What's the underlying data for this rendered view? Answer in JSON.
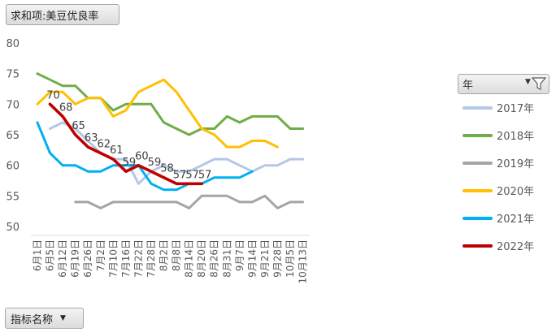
{
  "field_button": {
    "label": "求和项:美豆优良率"
  },
  "axis_field_button": {
    "label": "指标名称"
  },
  "legend": {
    "title": "年"
  },
  "icons": {
    "filter": "funnel-filter-icon",
    "dropdown": "dropdown-arrow-icon"
  },
  "chart_data": {
    "type": "line",
    "ylim": [
      50,
      80
    ],
    "yticks": [
      50,
      55,
      60,
      65,
      70,
      75,
      80
    ],
    "grid": false,
    "legend_position": "right",
    "categories": [
      "6月1日",
      "6月5日",
      "6月12日",
      "6月19日",
      "6月26日",
      "7月2日",
      "7月10日",
      "7月16日",
      "7月22日",
      "7月28日",
      "8月2日",
      "8月8日",
      "8月14日",
      "8月20日",
      "8月26日",
      "8月31日",
      "9月7日",
      "9月14日",
      "9月21日",
      "9月28日",
      "10月5日",
      "10月13日"
    ],
    "series": [
      {
        "name": "2017年",
        "color": "#b4c7e7",
        "values": [
          null,
          66,
          67,
          66,
          64,
          62,
          61,
          61,
          57,
          59,
          60,
          59,
          59,
          60,
          61,
          61,
          60,
          59,
          60,
          60,
          61,
          61
        ],
        "labels": []
      },
      {
        "name": "2018年",
        "color": "#70ad47",
        "values": [
          75,
          74,
          73,
          73,
          71,
          71,
          69,
          70,
          70,
          70,
          67,
          66,
          65,
          66,
          66,
          68,
          67,
          68,
          68,
          68,
          66,
          66
        ],
        "labels": []
      },
      {
        "name": "2019年",
        "color": "#a5a5a5",
        "values": [
          null,
          null,
          null,
          54,
          54,
          53,
          54,
          54,
          54,
          54,
          54,
          54,
          53,
          55,
          55,
          55,
          54,
          54,
          55,
          53,
          54,
          54
        ],
        "labels": []
      },
      {
        "name": "2020年",
        "color": "#ffc000",
        "values": [
          70,
          72,
          72,
          70,
          71,
          71,
          68,
          69,
          72,
          73,
          74,
          72,
          69,
          66,
          65,
          63,
          63,
          64,
          64,
          63,
          null,
          null
        ],
        "labels": []
      },
      {
        "name": "2021年",
        "color": "#00b0f0",
        "values": [
          67,
          62,
          60,
          60,
          59,
          59,
          60,
          60,
          60,
          57,
          56,
          56,
          57,
          57,
          58,
          58,
          58,
          59,
          null,
          null,
          null,
          null
        ],
        "labels": []
      },
      {
        "name": "2022年",
        "color": "#c00000",
        "values": [
          null,
          70,
          68,
          65,
          63,
          62,
          61,
          59,
          60,
          59,
          58,
          57,
          57,
          57,
          null,
          null,
          null,
          null,
          null,
          null,
          null,
          null
        ],
        "labels": [
          "",
          "70",
          "68",
          "65",
          "63",
          "62",
          "61",
          "59",
          "60",
          "59",
          "58",
          "57",
          "57",
          "57",
          "",
          "",
          "",
          "",
          "",
          "",
          "",
          ""
        ]
      }
    ]
  }
}
